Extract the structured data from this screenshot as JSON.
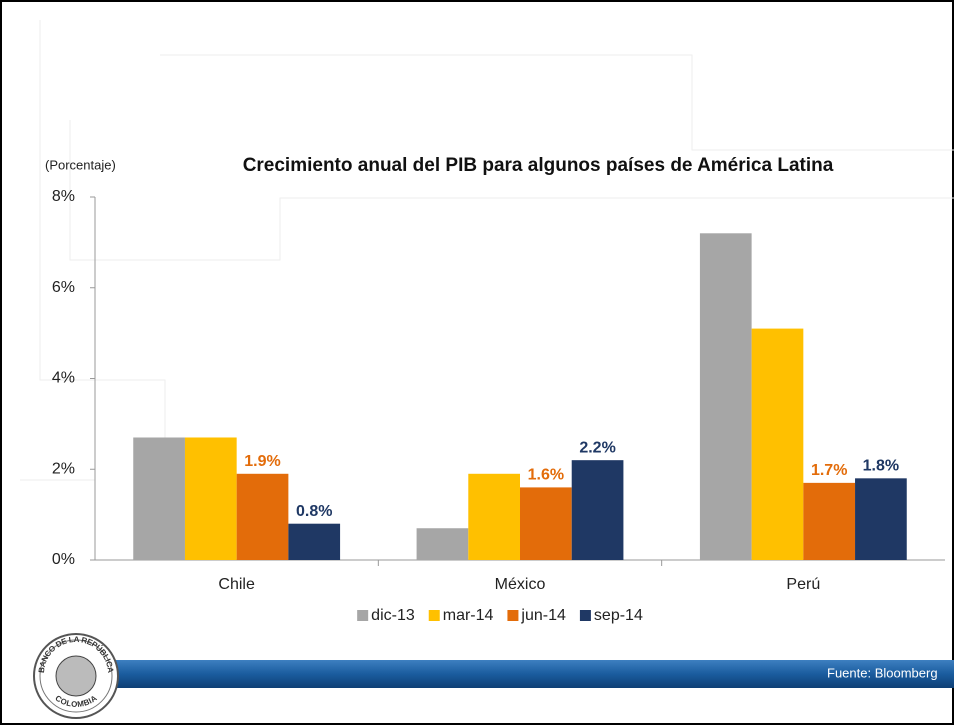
{
  "chart_data": {
    "type": "bar",
    "title": "Crecimiento anual del PIB para algunos países de América Latina",
    "y_label": "(Porcentaje)",
    "categories": [
      "Chile",
      "México",
      "Perú"
    ],
    "series": [
      {
        "name": "dic-13",
        "color": "#a6a6a6",
        "values": [
          2.7,
          0.7,
          7.2
        ]
      },
      {
        "name": "mar-14",
        "color": "#ffc000",
        "values": [
          2.7,
          1.9,
          5.1
        ]
      },
      {
        "name": "jun-14",
        "color": "#e36c0a",
        "values": [
          1.9,
          1.6,
          1.7
        ],
        "value_labels": [
          "1.9%",
          "1.6%",
          "1.7%"
        ]
      },
      {
        "name": "sep-14",
        "color": "#1f3864",
        "values": [
          0.8,
          2.2,
          1.8
        ],
        "value_labels": [
          "0.8%",
          "2.2%",
          "1.8%"
        ]
      }
    ],
    "ylim": [
      0,
      8
    ],
    "yticks": [
      {
        "value": 0,
        "label": "0%"
      },
      {
        "value": 2,
        "label": "2%"
      },
      {
        "value": 4,
        "label": "4%"
      },
      {
        "value": 6,
        "label": "6%"
      },
      {
        "value": 8,
        "label": "8%"
      }
    ],
    "legend": "bottom"
  },
  "source": "Fuente: Bloomberg",
  "logo": {
    "top": "BANCO DE LA REPÚBLICA",
    "bottom": "COLOMBIA"
  }
}
